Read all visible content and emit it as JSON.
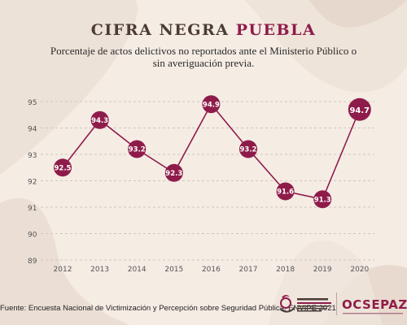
{
  "header": {
    "title_main": "CIFRA NEGRA",
    "title_accent": "PUEBLA",
    "subtitle": "Porcentaje de actos delictivos no reportados ante el Ministerio Público o sin averiguación previa."
  },
  "chart_data": {
    "type": "line",
    "categories": [
      "2012",
      "2013",
      "2014",
      "2015",
      "2016",
      "2017",
      "2018",
      "2019",
      "2020"
    ],
    "values": [
      92.5,
      94.3,
      93.2,
      92.3,
      94.9,
      93.2,
      91.6,
      91.3,
      94.7
    ],
    "data_labels": [
      "92.5",
      "94.3",
      "93.2",
      "92.3",
      "94.9",
      "93.2",
      "91.6",
      "91.3",
      "94.7"
    ],
    "yticks": [
      "95",
      "94",
      "93",
      "92",
      "91",
      "90",
      "89"
    ],
    "ylim": [
      89,
      95
    ],
    "grid": "horizontal dashed",
    "title": "CIFRA NEGRA PUEBLA",
    "xlabel": "",
    "ylabel": "",
    "colors": {
      "line": "#8e1c4a",
      "marker": "#8e1c4a",
      "label_text": "#ffffff",
      "tick_text": "#555555",
      "grid": "#cfc6c0"
    }
  },
  "footer": {
    "source": "Fuente: Encuesta Nacional de Victimización y Percepción sobre Seguridad Pública, ENVIPE 2021",
    "logo_consejo_name": "CONSEJO CIUDADANO",
    "logo_ocsepaz_name": "OCSEPAZ"
  }
}
